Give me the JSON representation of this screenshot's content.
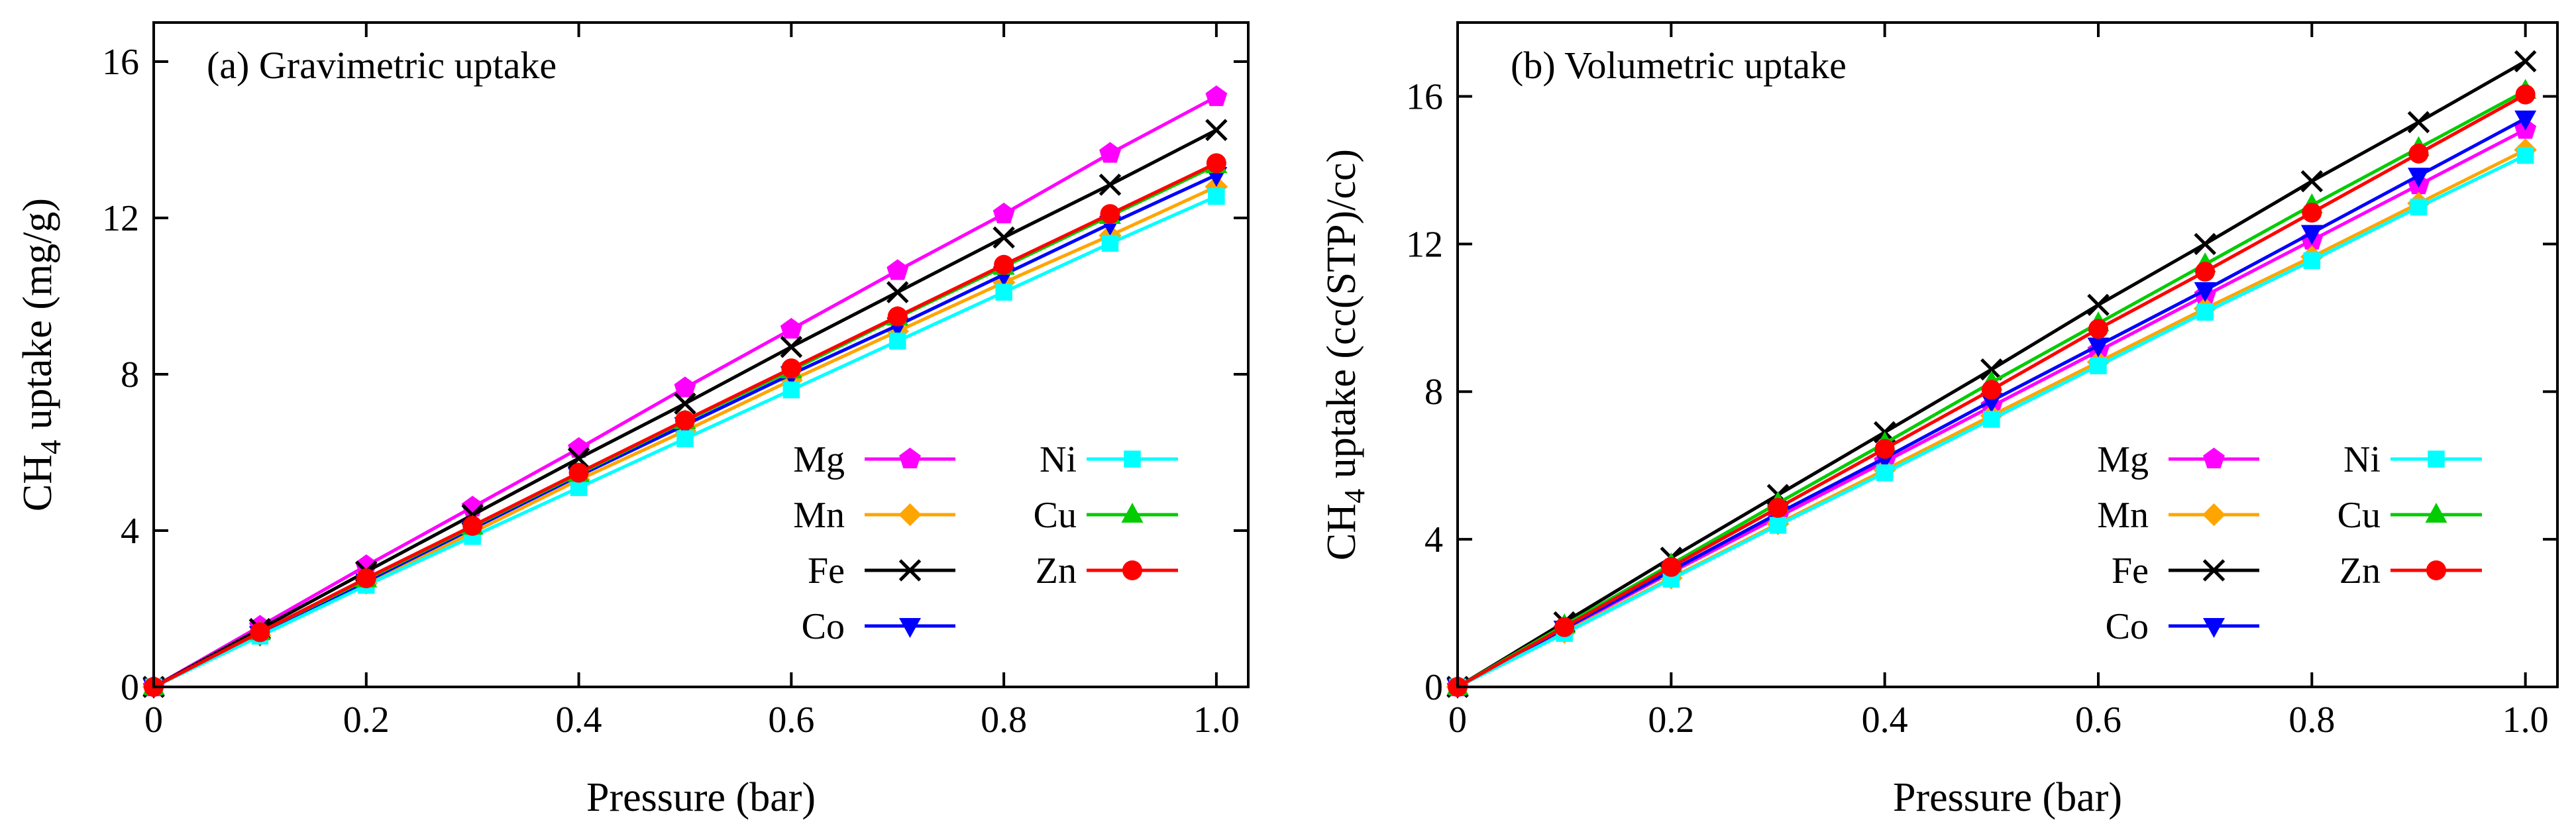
{
  "chart_data": [
    {
      "type": "line",
      "title": "(a) Gravimetric uptake",
      "xlabel": "Pressure (bar)",
      "ylabel_main": "CH",
      "ylabel_sub": "4",
      "ylabel_rest": " uptake (mg/g)",
      "xlim": [
        0,
        1.03
      ],
      "ylim": [
        0,
        17
      ],
      "xticks": [
        0,
        0.2,
        0.4,
        0.6,
        0.8,
        1.0
      ],
      "xtick_labels": [
        "0",
        "0.2",
        "0.4",
        "0.6",
        "0.8",
        "1.0"
      ],
      "yticks": [
        0,
        4,
        8,
        12,
        16
      ],
      "ytick_labels": [
        "0",
        "4",
        "8",
        "12",
        "16"
      ],
      "x": [
        0,
        0.1,
        0.2,
        0.3,
        0.4,
        0.5,
        0.6,
        0.7,
        0.8,
        0.9,
        1.0
      ],
      "legend_position": "bottom-right",
      "series": [
        {
          "name": "Mg",
          "color": "#ff00ff",
          "marker": "pentagon",
          "values": [
            0,
            1.55,
            3.1,
            4.6,
            6.1,
            7.65,
            9.15,
            10.65,
            12.1,
            13.65,
            15.1
          ]
        },
        {
          "name": "Mn",
          "color": "#ffa500",
          "marker": "diamond",
          "values": [
            0,
            1.32,
            2.65,
            3.95,
            5.3,
            6.55,
            7.85,
            9.1,
            10.35,
            11.55,
            12.8
          ]
        },
        {
          "name": "Fe",
          "color": "#000000",
          "marker": "cross",
          "values": [
            0,
            1.48,
            2.95,
            4.4,
            5.85,
            7.25,
            8.7,
            10.1,
            11.5,
            12.85,
            14.25
          ]
        },
        {
          "name": "Co",
          "color": "#0000ff",
          "marker": "triangle-down",
          "values": [
            0,
            1.35,
            2.7,
            4.05,
            5.4,
            6.7,
            8.0,
            9.25,
            10.55,
            11.85,
            13.1
          ]
        },
        {
          "name": "Ni",
          "color": "#00ffff",
          "marker": "square",
          "values": [
            0,
            1.3,
            2.6,
            3.85,
            5.1,
            6.35,
            7.6,
            8.85,
            10.1,
            11.35,
            12.55
          ]
        },
        {
          "name": "Cu",
          "color": "#00cc00",
          "marker": "triangle-up",
          "values": [
            0,
            1.4,
            2.75,
            4.1,
            5.45,
            6.8,
            8.1,
            9.45,
            10.75,
            12.05,
            13.35
          ]
        },
        {
          "name": "Zn",
          "color": "#ff0000",
          "marker": "circle",
          "values": [
            0,
            1.4,
            2.78,
            4.12,
            5.48,
            6.82,
            8.15,
            9.48,
            10.8,
            12.1,
            13.4
          ]
        }
      ]
    },
    {
      "type": "line",
      "title": "(b) Volumetric uptake",
      "xlabel": "Pressure (bar)",
      "ylabel_main": "CH",
      "ylabel_sub": "4",
      "ylabel_rest": " uptake (cc(STP)/cc)",
      "xlim": [
        0,
        1.03
      ],
      "ylim": [
        0,
        18
      ],
      "xticks": [
        0,
        0.2,
        0.4,
        0.6,
        0.8,
        1.0
      ],
      "xtick_labels": [
        "0",
        "0.2",
        "0.4",
        "0.6",
        "0.8",
        "1.0"
      ],
      "yticks": [
        0,
        4,
        8,
        12,
        16
      ],
      "ytick_labels": [
        "0",
        "4",
        "8",
        "12",
        "16"
      ],
      "x": [
        0,
        0.1,
        0.2,
        0.3,
        0.4,
        0.5,
        0.6,
        0.7,
        0.8,
        0.9,
        1.0
      ],
      "legend_position": "bottom-right",
      "series": [
        {
          "name": "Mg",
          "color": "#ff00ff",
          "marker": "pentagon",
          "values": [
            0,
            1.55,
            3.1,
            4.6,
            6.1,
            7.6,
            9.1,
            10.6,
            12.1,
            13.6,
            15.1
          ]
        },
        {
          "name": "Mn",
          "color": "#ffa500",
          "marker": "diamond",
          "values": [
            0,
            1.48,
            2.95,
            4.42,
            5.88,
            7.35,
            8.8,
            10.25,
            11.65,
            13.1,
            14.55
          ]
        },
        {
          "name": "Fe",
          "color": "#000000",
          "marker": "cross",
          "values": [
            0,
            1.75,
            3.5,
            5.2,
            6.9,
            8.6,
            10.35,
            12.0,
            13.7,
            15.3,
            16.95
          ]
        },
        {
          "name": "Co",
          "color": "#0000ff",
          "marker": "triangle-down",
          "values": [
            0,
            1.58,
            3.15,
            4.7,
            6.2,
            7.75,
            9.25,
            10.75,
            12.3,
            13.85,
            15.4
          ]
        },
        {
          "name": "Ni",
          "color": "#00ffff",
          "marker": "square",
          "values": [
            0,
            1.45,
            2.92,
            4.38,
            5.8,
            7.25,
            8.7,
            10.15,
            11.55,
            13.0,
            14.4
          ]
        },
        {
          "name": "Cu",
          "color": "#00cc00",
          "marker": "triangle-up",
          "values": [
            0,
            1.67,
            3.32,
            4.98,
            6.6,
            8.25,
            9.85,
            11.45,
            13.05,
            14.6,
            16.15
          ]
        },
        {
          "name": "Zn",
          "color": "#ff0000",
          "marker": "circle",
          "values": [
            0,
            1.62,
            3.25,
            4.85,
            6.45,
            8.05,
            9.7,
            11.25,
            12.85,
            14.45,
            16.05
          ]
        }
      ]
    }
  ]
}
